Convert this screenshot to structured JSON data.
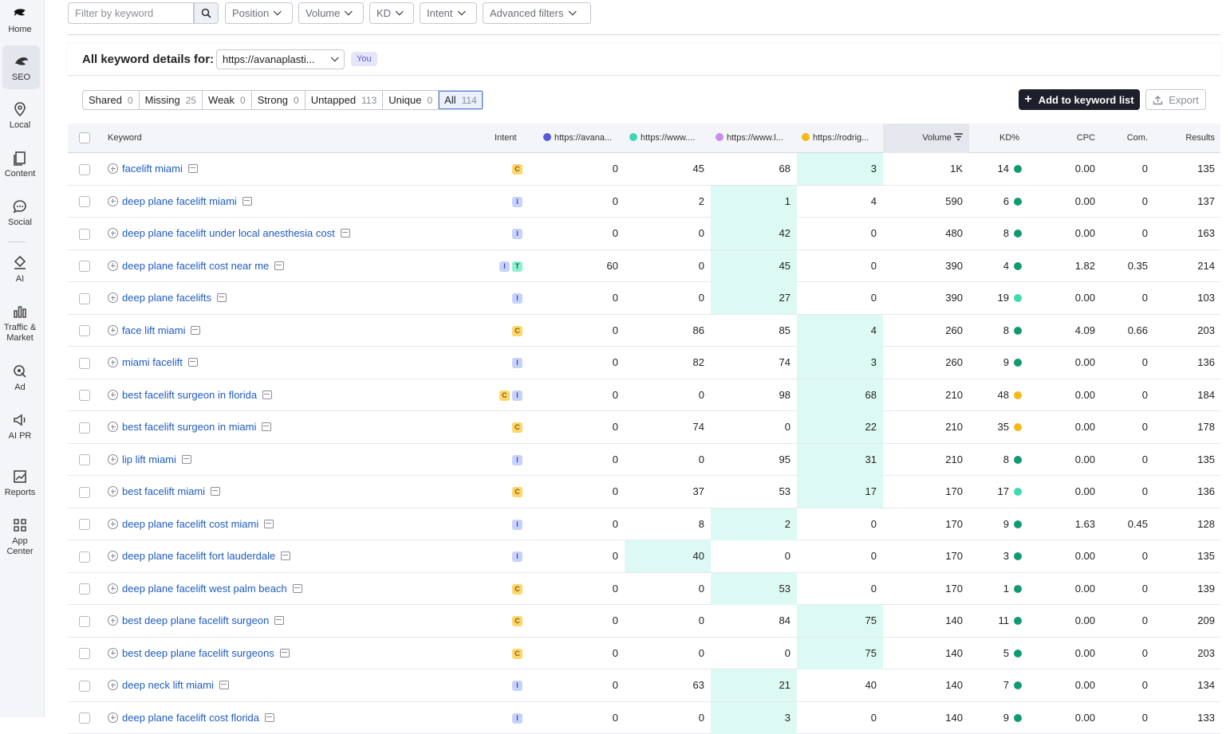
{
  "nav": [
    {
      "label": "Home",
      "icon": "home-icon"
    },
    {
      "label": "SEO",
      "icon": "seo-icon",
      "active": true
    },
    {
      "label": "Local",
      "icon": "location-pin-icon"
    },
    {
      "label": "Content",
      "icon": "content-icon"
    },
    {
      "label": "Social",
      "icon": "chat-bubble-icon"
    },
    {
      "label": "AI",
      "icon": "ai-icon"
    },
    {
      "label": "Traffic & Market",
      "icon": "bar-chart-icon"
    },
    {
      "label": "Ad",
      "icon": "ad-icon"
    },
    {
      "label": "AI PR",
      "icon": "megaphone-icon"
    },
    {
      "label": "Reports",
      "icon": "reports-icon"
    },
    {
      "label": "App Center",
      "icon": "grid-icon"
    }
  ],
  "filters": {
    "keyword_placeholder": "Filter by keyword",
    "dropdowns": [
      "Position",
      "Volume",
      "KD",
      "Intent",
      "Advanced filters"
    ]
  },
  "details": {
    "title": "All keyword details for:",
    "domain": "https://avanaplasti...",
    "badge": "You"
  },
  "tabs": [
    {
      "label": "Shared",
      "count": "0"
    },
    {
      "label": "Missing",
      "count": "25"
    },
    {
      "label": "Weak",
      "count": "0"
    },
    {
      "label": "Strong",
      "count": "0"
    },
    {
      "label": "Untapped",
      "count": "113"
    },
    {
      "label": "Unique",
      "count": "0"
    },
    {
      "label": "All",
      "count": "114",
      "active": true
    }
  ],
  "actions": {
    "add": "Add to keyword list",
    "export": "Export"
  },
  "colors": {
    "domain1": "#5b5bd6",
    "domain2": "#3fd6b2",
    "domain3": "#c98cf0",
    "domain4": "#f7b918",
    "kd_green": "#0e9b72",
    "kd_teal": "#3ddbb0",
    "kd_orange": "#f7b918",
    "highlight": "#dcfaf3"
  },
  "table": {
    "headers": {
      "keyword": "Keyword",
      "intent": "Intent",
      "d1": "https://avana...",
      "d2": "https://www....",
      "d3": "https://www.l...",
      "d4": "https://rodrig...",
      "volume": "Volume",
      "kd": "KD%",
      "cpc": "CPC",
      "com": "Com.",
      "results": "Results"
    },
    "rows": [
      {
        "kw": "facelift miami",
        "intent": [
          "C"
        ],
        "d": [
          "0",
          "45",
          "68",
          "3"
        ],
        "hl": 3,
        "vol": "1K",
        "kd": "14",
        "kdc": "green",
        "cpc": "0.00",
        "com": "0",
        "res": "135"
      },
      {
        "kw": "deep plane facelift miami",
        "intent": [
          "I"
        ],
        "d": [
          "0",
          "2",
          "1",
          "4"
        ],
        "hl": 2,
        "vol": "590",
        "kd": "6",
        "kdc": "green",
        "cpc": "0.00",
        "com": "0",
        "res": "137"
      },
      {
        "kw": "deep plane facelift under local anesthesia cost",
        "intent": [
          "I"
        ],
        "d": [
          "0",
          "0",
          "42",
          "0"
        ],
        "hl": 2,
        "vol": "480",
        "kd": "8",
        "kdc": "green",
        "cpc": "0.00",
        "com": "0",
        "res": "163"
      },
      {
        "kw": "deep plane facelift cost near me",
        "intent": [
          "I",
          "T"
        ],
        "d": [
          "60",
          "0",
          "45",
          "0"
        ],
        "hl": 2,
        "vol": "390",
        "kd": "4",
        "kdc": "green",
        "cpc": "1.82",
        "com": "0.35",
        "res": "214"
      },
      {
        "kw": "deep plane facelifts",
        "intent": [
          "I"
        ],
        "d": [
          "0",
          "0",
          "27",
          "0"
        ],
        "hl": 2,
        "vol": "390",
        "kd": "19",
        "kdc": "teal",
        "cpc": "0.00",
        "com": "0",
        "res": "103"
      },
      {
        "kw": "face lift miami",
        "intent": [
          "C"
        ],
        "d": [
          "0",
          "86",
          "85",
          "4"
        ],
        "hl": 3,
        "vol": "260",
        "kd": "8",
        "kdc": "green",
        "cpc": "4.09",
        "com": "0.66",
        "res": "203"
      },
      {
        "kw": "miami facelift",
        "intent": [
          "I"
        ],
        "d": [
          "0",
          "82",
          "74",
          "3"
        ],
        "hl": 3,
        "vol": "260",
        "kd": "9",
        "kdc": "green",
        "cpc": "0.00",
        "com": "0",
        "res": "136"
      },
      {
        "kw": "best facelift surgeon in florida",
        "intent": [
          "C",
          "I"
        ],
        "d": [
          "0",
          "0",
          "98",
          "68"
        ],
        "hl": 3,
        "vol": "210",
        "kd": "48",
        "kdc": "orange",
        "cpc": "0.00",
        "com": "0",
        "res": "184"
      },
      {
        "kw": "best facelift surgeon in miami",
        "intent": [
          "C"
        ],
        "d": [
          "0",
          "74",
          "0",
          "22"
        ],
        "hl": 3,
        "vol": "210",
        "kd": "35",
        "kdc": "orange",
        "cpc": "0.00",
        "com": "0",
        "res": "178"
      },
      {
        "kw": "lip lift miami",
        "intent": [
          "I"
        ],
        "d": [
          "0",
          "0",
          "95",
          "31"
        ],
        "hl": 3,
        "vol": "210",
        "kd": "8",
        "kdc": "green",
        "cpc": "0.00",
        "com": "0",
        "res": "135"
      },
      {
        "kw": "best facelift miami",
        "intent": [
          "C"
        ],
        "d": [
          "0",
          "37",
          "53",
          "17"
        ],
        "hl": 3,
        "vol": "170",
        "kd": "17",
        "kdc": "teal",
        "cpc": "0.00",
        "com": "0",
        "res": "136"
      },
      {
        "kw": "deep plane facelift cost miami",
        "intent": [
          "I"
        ],
        "d": [
          "0",
          "8",
          "2",
          "0"
        ],
        "hl": 2,
        "vol": "170",
        "kd": "9",
        "kdc": "green",
        "cpc": "1.63",
        "com": "0.45",
        "res": "128"
      },
      {
        "kw": "deep plane facelift fort lauderdale",
        "intent": [
          "I"
        ],
        "d": [
          "0",
          "40",
          "0",
          "0"
        ],
        "hl": 1,
        "vol": "170",
        "kd": "3",
        "kdc": "green",
        "cpc": "0.00",
        "com": "0",
        "res": "135"
      },
      {
        "kw": "deep plane facelift west palm beach",
        "intent": [
          "C"
        ],
        "d": [
          "0",
          "0",
          "53",
          "0"
        ],
        "hl": 2,
        "vol": "170",
        "kd": "1",
        "kdc": "green",
        "cpc": "0.00",
        "com": "0",
        "res": "139"
      },
      {
        "kw": "best deep plane facelift surgeon",
        "intent": [
          "C"
        ],
        "d": [
          "0",
          "0",
          "84",
          "75"
        ],
        "hl": 3,
        "vol": "140",
        "kd": "11",
        "kdc": "green",
        "cpc": "0.00",
        "com": "0",
        "res": "209"
      },
      {
        "kw": "best deep plane facelift surgeons",
        "intent": [
          "C"
        ],
        "d": [
          "0",
          "0",
          "0",
          "75"
        ],
        "hl": 3,
        "vol": "140",
        "kd": "5",
        "kdc": "green",
        "cpc": "0.00",
        "com": "0",
        "res": "203"
      },
      {
        "kw": "deep neck lift miami",
        "intent": [
          "I"
        ],
        "d": [
          "0",
          "63",
          "21",
          "40"
        ],
        "hl": 2,
        "vol": "140",
        "kd": "7",
        "kdc": "green",
        "cpc": "0.00",
        "com": "0",
        "res": "134"
      },
      {
        "kw": "deep plane facelift cost florida",
        "intent": [
          "I"
        ],
        "d": [
          "0",
          "0",
          "3",
          "0"
        ],
        "hl": 2,
        "vol": "140",
        "kd": "9",
        "kdc": "green",
        "cpc": "0.00",
        "com": "0",
        "res": "133"
      }
    ]
  }
}
